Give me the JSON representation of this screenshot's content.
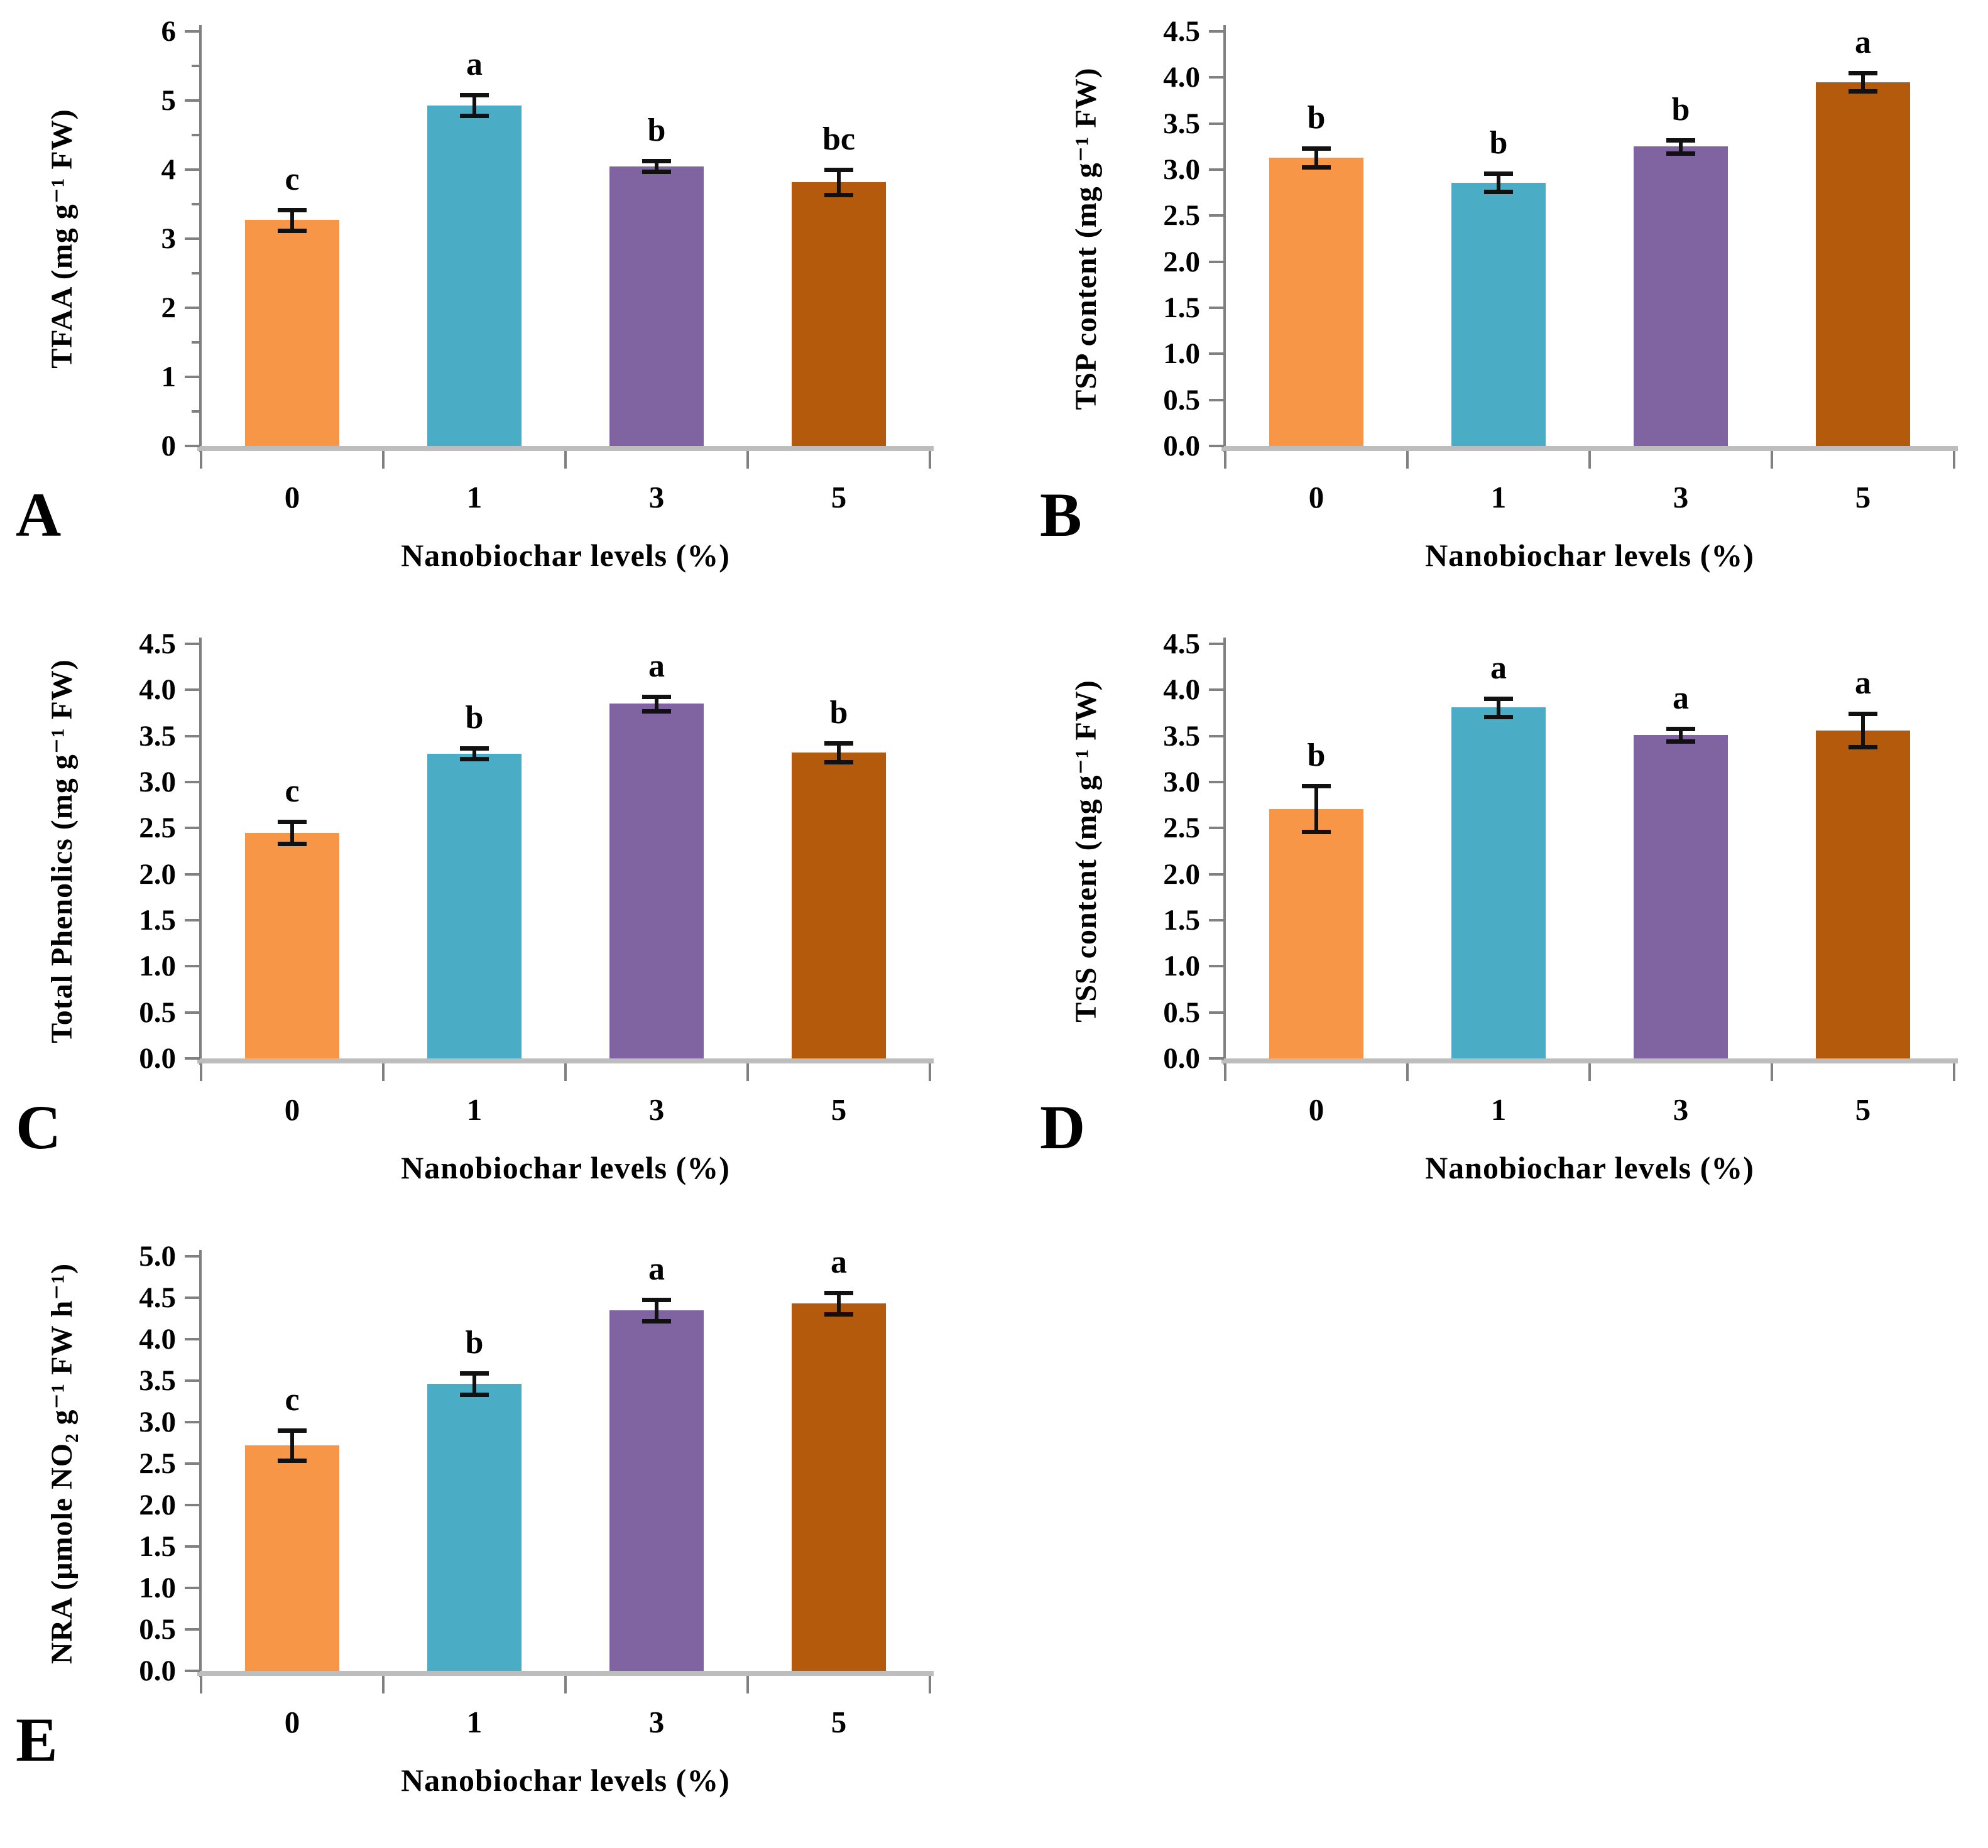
{
  "palette": [
    "#F79646",
    "#4BACC6",
    "#8064A2",
    "#B45A0C"
  ],
  "error_bar_color": "#111111",
  "axis_color": "#808080",
  "baseline_color": "#BDBDBD",
  "x_axis_title": "Nanobiochar levels (%)",
  "chart_data": [
    {
      "type": "bar",
      "panel": "A",
      "ylabel": "TFAA (mg g⁻¹ FW)",
      "xlabel": "Nanobiochar levels (%)",
      "categories": [
        "0",
        "1",
        "3",
        "5"
      ],
      "values": [
        3.27,
        4.93,
        4.05,
        3.82
      ],
      "errors": [
        0.15,
        0.15,
        0.08,
        0.18
      ],
      "sig_letters": [
        "c",
        "a",
        "b",
        "bc"
      ],
      "ylim": [
        0,
        6
      ],
      "ytick_step": 1,
      "ytick_decimals": 0,
      "minor_ticks": true,
      "grid": false,
      "legend": false
    },
    {
      "type": "bar",
      "panel": "B",
      "ylabel": "TSP content (mg g⁻¹ FW)",
      "xlabel": "Nanobiochar levels (%)",
      "categories": [
        "0",
        "1",
        "3",
        "5"
      ],
      "values": [
        3.13,
        2.86,
        3.25,
        3.95
      ],
      "errors": [
        0.1,
        0.1,
        0.07,
        0.1
      ],
      "sig_letters": [
        "b",
        "b",
        "b",
        "a"
      ],
      "ylim": [
        0,
        4.5
      ],
      "ytick_step": 0.5,
      "ytick_decimals": 1,
      "minor_ticks": false,
      "grid": false,
      "legend": false
    },
    {
      "type": "bar",
      "panel": "C",
      "ylabel": "Total Phenolics (mg g⁻¹ FW)",
      "xlabel": "Nanobiochar levels (%)",
      "categories": [
        "0",
        "1",
        "3",
        "5"
      ],
      "values": [
        2.45,
        3.31,
        3.85,
        3.32
      ],
      "errors": [
        0.12,
        0.06,
        0.08,
        0.1
      ],
      "sig_letters": [
        "c",
        "b",
        "a",
        "b"
      ],
      "ylim": [
        0,
        4.5
      ],
      "ytick_step": 0.5,
      "ytick_decimals": 1,
      "minor_ticks": false,
      "grid": false,
      "legend": false
    },
    {
      "type": "bar",
      "panel": "D",
      "ylabel": "TSS content (mg g⁻¹ FW)",
      "xlabel": "Nanobiochar levels (%)",
      "categories": [
        "0",
        "1",
        "3",
        "5"
      ],
      "values": [
        2.71,
        3.81,
        3.51,
        3.56
      ],
      "errors": [
        0.25,
        0.1,
        0.07,
        0.18
      ],
      "sig_letters": [
        "b",
        "a",
        "a",
        "a"
      ],
      "ylim": [
        0,
        4.5
      ],
      "ytick_step": 0.5,
      "ytick_decimals": 1,
      "minor_ticks": false,
      "grid": false,
      "legend": false
    },
    {
      "type": "bar",
      "panel": "E",
      "ylabel": "NRA (μmole NO₂ g⁻¹ FW h⁻¹)",
      "xlabel": "Nanobiochar levels (%)",
      "categories": [
        "0",
        "1",
        "3",
        "5"
      ],
      "values": [
        2.72,
        3.46,
        4.35,
        4.43
      ],
      "errors": [
        0.18,
        0.13,
        0.13,
        0.13
      ],
      "sig_letters": [
        "c",
        "b",
        "a",
        "a"
      ],
      "ylim": [
        0,
        5
      ],
      "ytick_step": 0.5,
      "ytick_decimals": 1,
      "minor_ticks": false,
      "grid": false,
      "legend": false
    }
  ]
}
